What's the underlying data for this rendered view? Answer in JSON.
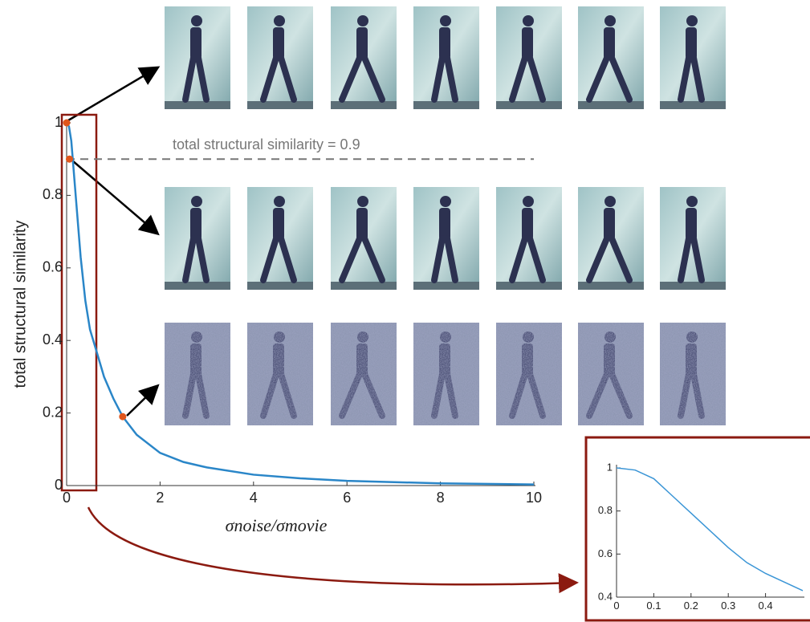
{
  "chart_data": [
    {
      "type": "line",
      "xlabel": "σnoise/σmovie",
      "ylabel": "total structural similarity",
      "x": [
        0,
        0.05,
        0.1,
        0.15,
        0.2,
        0.3,
        0.4,
        0.5,
        0.64,
        0.8,
        1,
        1.2,
        1.5,
        2,
        2.5,
        3,
        4,
        5,
        6,
        8,
        10
      ],
      "series": [
        {
          "color": "#2a86c8",
          "values": [
            1,
            0.99,
            0.95,
            0.87,
            0.79,
            0.63,
            0.51,
            0.43,
            0.37,
            0.3,
            0.24,
            0.19,
            0.14,
            0.09,
            0.065,
            0.05,
            0.03,
            0.02,
            0.013,
            0.006,
            0.003
          ]
        }
      ],
      "points": {
        "color": "#e0561c",
        "x": [
          0,
          0.06,
          1.2
        ],
        "values": [
          1,
          0.9,
          0.19
        ]
      },
      "hline": {
        "value": 0.9,
        "label": "total structural similarity = 0.9",
        "color": "#777777"
      },
      "xlim": [
        0,
        10
      ],
      "ylim": [
        0,
        1
      ],
      "xticks": [
        0,
        2,
        4,
        6,
        8,
        10
      ],
      "yticks": [
        0,
        0.2,
        0.4,
        0.6,
        0.8,
        1
      ]
    },
    {
      "type": "line",
      "x": [
        0,
        0.05,
        0.1,
        0.15,
        0.2,
        0.25,
        0.3,
        0.35,
        0.4,
        0.45,
        0.5
      ],
      "series": [
        {
          "color": "#3a95d6",
          "values": [
            1,
            0.99,
            0.95,
            0.87,
            0.79,
            0.71,
            0.63,
            0.56,
            0.51,
            0.47,
            0.43
          ]
        }
      ],
      "xlim": [
        0,
        0.5
      ],
      "ylim": [
        0.4,
        1
      ],
      "xticks": [
        0,
        0.1,
        0.2,
        0.3,
        0.4
      ],
      "yticks": [
        0.4,
        0.6,
        0.8,
        1
      ]
    }
  ]
}
